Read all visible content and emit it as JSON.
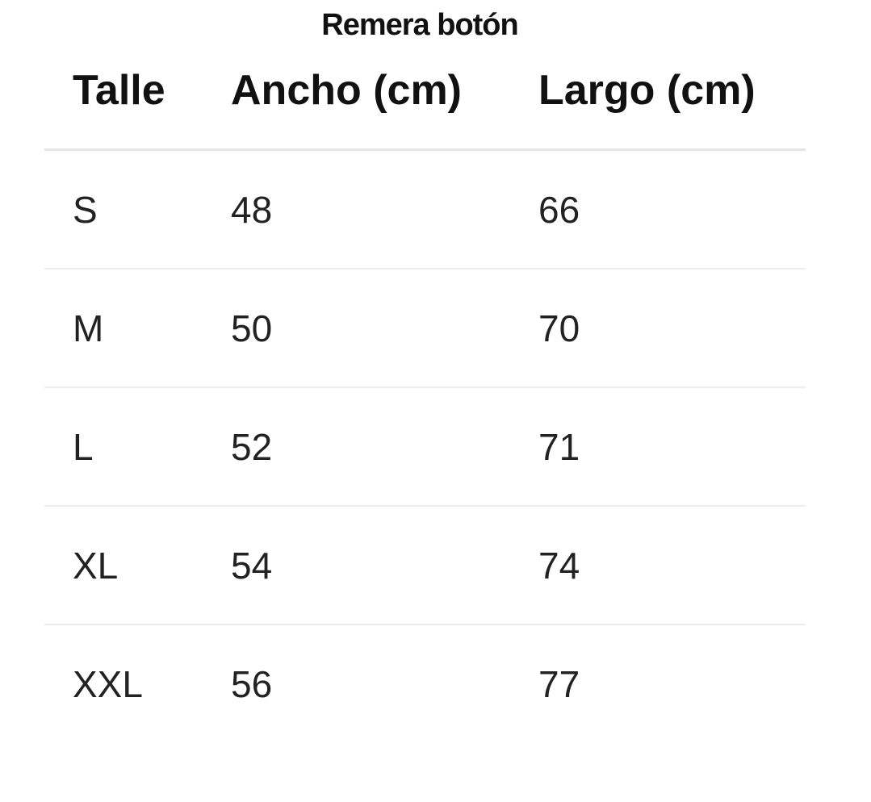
{
  "title": "Remera botón",
  "headers": [
    "Talle",
    "Ancho (cm)",
    "Largo (cm)"
  ],
  "rows": [
    [
      "S",
      "48",
      "66"
    ],
    [
      "M",
      "50",
      "70"
    ],
    [
      "L",
      "52",
      "71"
    ],
    [
      "XL",
      "54",
      "74"
    ],
    [
      "XXL",
      "56",
      "77"
    ]
  ]
}
